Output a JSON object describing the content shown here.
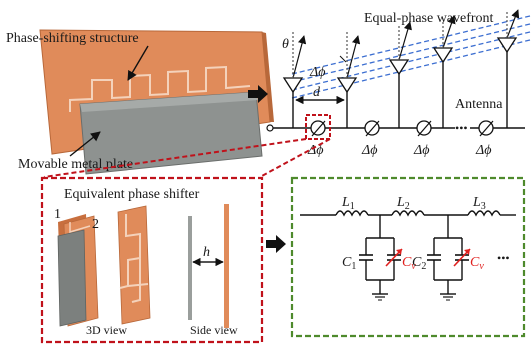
{
  "labels": {
    "phase_shifting_structure": "Phase-shifting structure",
    "movable_metal_plate": "Movable metal plate",
    "equal_phase_wavefront": "Equal-phase wavefront",
    "antenna": "Antenna",
    "equivalent_phase_shifter": "Equivalent phase shifter",
    "view_3d": "3D view",
    "side_view": "Side view",
    "port_1": "1",
    "port_2": "2",
    "gap_h": "h",
    "spacing_d": "d",
    "angle_theta": "θ",
    "delta_phi": "Δϕ",
    "ellipsis": "•••"
  },
  "circuit": {
    "inductors": [
      {
        "sym": "L",
        "sub": "1"
      },
      {
        "sym": "L",
        "sub": "2"
      },
      {
        "sym": "L",
        "sub": "3"
      }
    ],
    "fixed_caps": [
      {
        "sym": "C",
        "sub": "1"
      },
      {
        "sym": "C",
        "sub": "2"
      }
    ],
    "variable_caps": [
      {
        "sym": "C",
        "sub": "v"
      },
      {
        "sym": "C",
        "sub": "v"
      }
    ],
    "ellipsis": "•••"
  },
  "colors": {
    "copper": "#e08b5a",
    "copper_dark": "#b8683a",
    "metal_plate": "#8e9290",
    "red_dash": "#c0121b",
    "green_dash": "#4e8a2c",
    "wavefront": "#3d6fd1",
    "variable_cap": "#e0211f"
  }
}
